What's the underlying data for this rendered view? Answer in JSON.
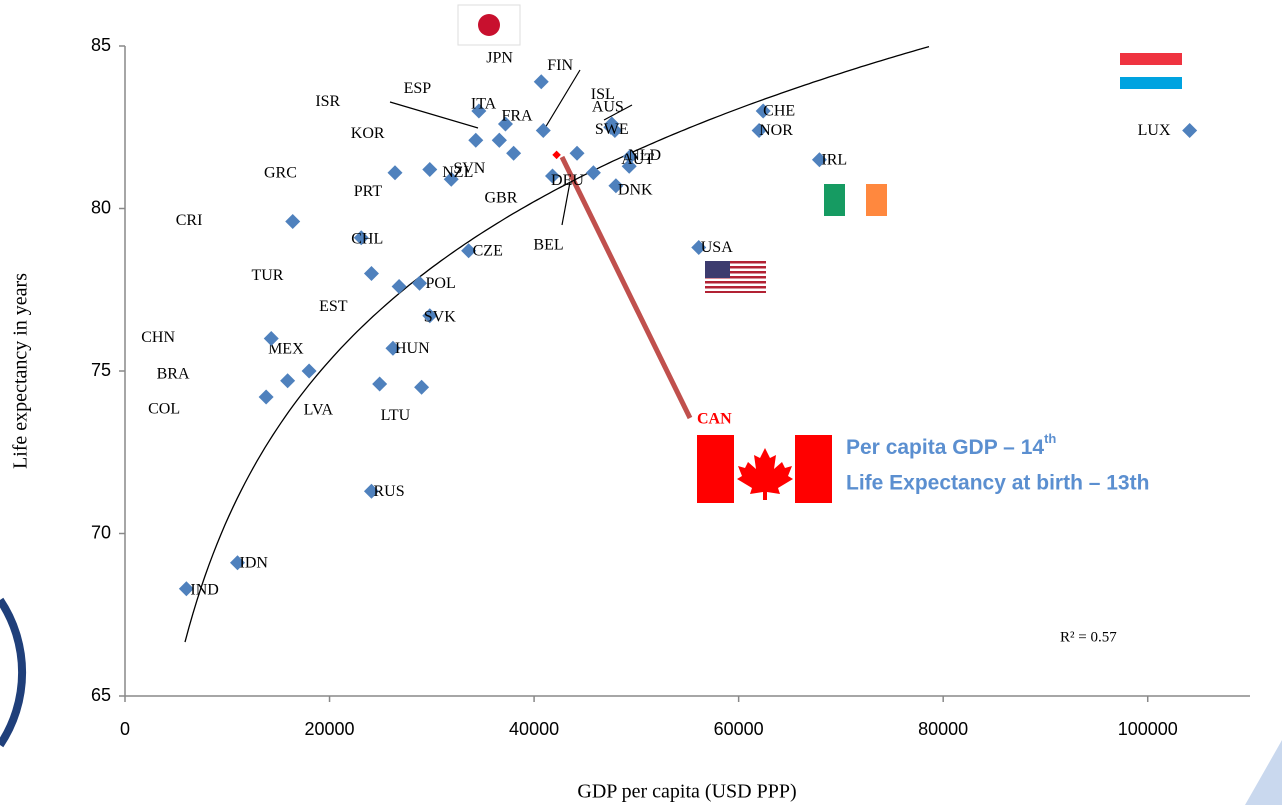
{
  "chart_data": {
    "type": "scatter",
    "xlabel": "GDP per capita (USD PPP)",
    "ylabel": "Life expectancy in years",
    "xlim": [
      0,
      110000
    ],
    "ylim": [
      65,
      85
    ],
    "xticks": [
      0,
      20000,
      40000,
      60000,
      80000,
      100000
    ],
    "yticks": [
      65,
      70,
      75,
      80,
      85
    ],
    "series": [
      {
        "color": "#4f81bd",
        "labels": [
          "IND",
          "IDN",
          "RUS",
          "COL",
          "BRA",
          "MEX",
          "CHN",
          "LVA",
          "LTU",
          "HUN",
          "SVK",
          "EST",
          "POL",
          "TUR",
          "CHL",
          "CRI",
          "CZE",
          "GRC",
          "PRT",
          "NZL",
          "SVN",
          "KOR",
          "ISR",
          "ESP",
          "ITA",
          "FRA",
          "JPN",
          "FIN",
          "GBR",
          "DEU",
          "BEL",
          "ISL",
          "AUS",
          "SWE",
          "NLD",
          "AUT",
          "DNK",
          "USA",
          "CHE",
          "NOR",
          "IRL",
          "LUX"
        ],
        "x": [
          6000,
          11000,
          24100,
          13800,
          15900,
          18000,
          14300,
          24900,
          29000,
          26200,
          29800,
          26800,
          28800,
          24100,
          23100,
          16400,
          33600,
          26400,
          29800,
          31900,
          36600,
          34300,
          36600,
          38000,
          34600,
          37200,
          40700,
          40900,
          41800,
          44200,
          45800,
          47500,
          47600,
          47900,
          49400,
          49300,
          48000,
          56100,
          62400,
          62000,
          67900,
          104100
        ],
        "values": [
          68.3,
          69.1,
          71.3,
          74.2,
          74.7,
          75.0,
          76.0,
          74.6,
          74.5,
          75.7,
          76.7,
          77.6,
          77.7,
          78.0,
          79.1,
          79.6,
          78.7,
          81.1,
          81.2,
          80.9,
          82.1,
          82.1,
          82.1,
          81.7,
          83.0,
          82.6,
          83.9,
          82.4,
          81.0,
          81.7,
          81.1,
          82.5,
          82.6,
          82.4,
          81.6,
          81.3,
          80.7,
          78.8,
          83.0,
          82.4,
          81.5,
          82.4
        ]
      },
      {
        "color": "#ff0000",
        "labels": [
          "CAN"
        ],
        "x": [
          42200
        ],
        "values": [
          81.65
        ]
      }
    ],
    "trendline": {
      "type": "logarithmic",
      "coefficients": [
        7.06,
        5.4
      ],
      "label": "R² = 0.57"
    },
    "annotation_lines": [
      {
        "text": "Per capita GDP – 14",
        "sup": "th"
      },
      {
        "text": "Life Expectancy at birth – 13th"
      }
    ]
  }
}
